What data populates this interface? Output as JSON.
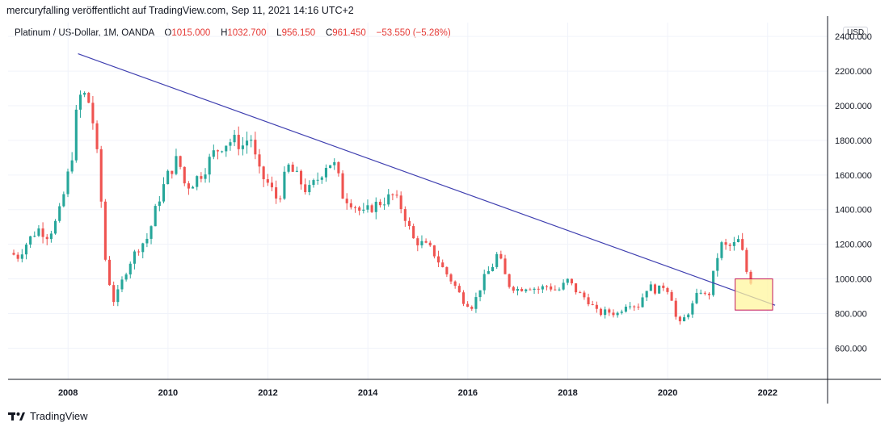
{
  "header": {
    "published": "mercuryfalling veröffentlicht auf TradingView.com, Sep 11, 2021 14:16 UTC+2"
  },
  "legend": {
    "symbol": "Platinum / US-Dollar, 1M, OANDA",
    "open_label": "O",
    "open": "1015.000",
    "high_label": "H",
    "high": "1032.700",
    "low_label": "L",
    "low": "956.150",
    "close_label": "C",
    "close": "961.450",
    "change": "−53.550 (−5.28%)"
  },
  "currency": "USD",
  "footer": {
    "brand": "TradingView"
  },
  "colors": {
    "up": "#26a69a",
    "down": "#ef5350",
    "trendline": "#3f3fb0",
    "grid": "#f0f3fa",
    "box_fill": "#fff59d",
    "box_stroke": "#c2185b"
  },
  "chart_data": {
    "type": "candlestick",
    "title": "Platinum / US-Dollar, 1M, OANDA",
    "xlabel": "",
    "ylabel": "USD",
    "ylim": [
      420,
      2480
    ],
    "xlim": [
      2006.8,
      2023.2
    ],
    "y_ticks": [
      600,
      800,
      1000,
      1200,
      1400,
      1600,
      1800,
      2000,
      2200,
      2400
    ],
    "y_tick_labels": [
      "600.000",
      "800.000",
      "1000.000",
      "1200.000",
      "1400.000",
      "1600.000",
      "1800.000",
      "2000.000",
      "2200.000",
      "2400.000"
    ],
    "x_ticks": [
      2008,
      2010,
      2012,
      2014,
      2016,
      2018,
      2020,
      2022
    ],
    "x_tick_labels": [
      "2008",
      "2010",
      "2012",
      "2014",
      "2016",
      "2018",
      "2020",
      "2022"
    ],
    "close_path": [
      [
        2006.83,
        1150
      ],
      [
        2007.0,
        1130
      ],
      [
        2007.2,
        1220
      ],
      [
        2007.4,
        1290
      ],
      [
        2007.6,
        1250
      ],
      [
        2007.8,
        1350
      ],
      [
        2007.95,
        1530
      ],
      [
        2008.1,
        1750
      ],
      [
        2008.2,
        2050
      ],
      [
        2008.35,
        2060
      ],
      [
        2008.45,
        2000
      ],
      [
        2008.55,
        1800
      ],
      [
        2008.65,
        1500
      ],
      [
        2008.75,
        1100
      ],
      [
        2008.9,
        870
      ],
      [
        2009.0,
        920
      ],
      [
        2009.2,
        1080
      ],
      [
        2009.4,
        1180
      ],
      [
        2009.6,
        1240
      ],
      [
        2009.8,
        1450
      ],
      [
        2010.0,
        1600
      ],
      [
        2010.2,
        1700
      ],
      [
        2010.35,
        1530
      ],
      [
        2010.5,
        1560
      ],
      [
        2010.7,
        1620
      ],
      [
        2010.9,
        1720
      ],
      [
        2011.1,
        1780
      ],
      [
        2011.3,
        1800
      ],
      [
        2011.5,
        1770
      ],
      [
        2011.65,
        1830
      ],
      [
        2011.8,
        1620
      ],
      [
        2012.0,
        1550
      ],
      [
        2012.2,
        1450
      ],
      [
        2012.4,
        1650
      ],
      [
        2012.6,
        1580
      ],
      [
        2012.8,
        1500
      ],
      [
        2013.0,
        1580
      ],
      [
        2013.2,
        1680
      ],
      [
        2013.35,
        1650
      ],
      [
        2013.5,
        1480
      ],
      [
        2013.7,
        1440
      ],
      [
        2013.9,
        1370
      ],
      [
        2014.1,
        1420
      ],
      [
        2014.3,
        1450
      ],
      [
        2014.5,
        1480
      ],
      [
        2014.7,
        1400
      ],
      [
        2014.9,
        1230
      ],
      [
        2015.1,
        1200
      ],
      [
        2015.3,
        1160
      ],
      [
        2015.5,
        1060
      ],
      [
        2015.7,
        980
      ],
      [
        2015.9,
        880
      ],
      [
        2016.1,
        840
      ],
      [
        2016.3,
        990
      ],
      [
        2016.5,
        1080
      ],
      [
        2016.6,
        1150
      ],
      [
        2016.8,
        970
      ],
      [
        2017.0,
        940
      ],
      [
        2017.2,
        960
      ],
      [
        2017.4,
        940
      ],
      [
        2017.6,
        960
      ],
      [
        2017.8,
        930
      ],
      [
        2018.0,
        990
      ],
      [
        2018.2,
        920
      ],
      [
        2018.4,
        880
      ],
      [
        2018.6,
        800
      ],
      [
        2018.8,
        810
      ],
      [
        2019.0,
        800
      ],
      [
        2019.2,
        870
      ],
      [
        2019.4,
        840
      ],
      [
        2019.6,
        960
      ],
      [
        2019.8,
        930
      ],
      [
        2019.95,
        970
      ],
      [
        2020.1,
        880
      ],
      [
        2020.2,
        720
      ],
      [
        2020.35,
        780
      ],
      [
        2020.5,
        850
      ],
      [
        2020.65,
        940
      ],
      [
        2020.8,
        880
      ],
      [
        2020.95,
        1070
      ],
      [
        2021.05,
        1200
      ],
      [
        2021.2,
        1180
      ],
      [
        2021.35,
        1200
      ],
      [
        2021.45,
        1230
      ],
      [
        2021.55,
        1060
      ],
      [
        2021.65,
        1000
      ],
      [
        2021.7,
        961
      ]
    ],
    "trendline": {
      "from": [
        2008.2,
        2300
      ],
      "to": [
        2022.15,
        848
      ]
    },
    "highlight_box": {
      "x_range": [
        2021.35,
        2022.1
      ],
      "y_range": [
        820,
        1000
      ]
    }
  }
}
